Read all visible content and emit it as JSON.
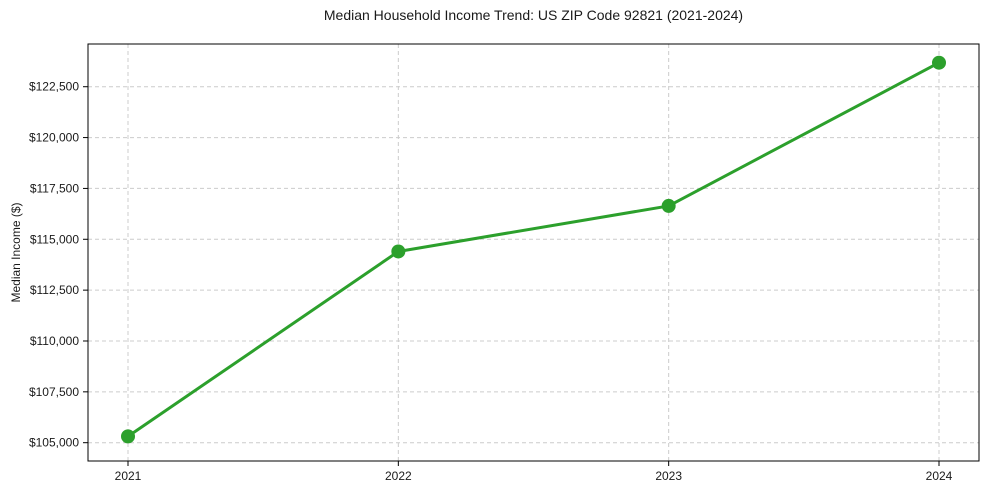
{
  "chart_data": {
    "type": "line",
    "title": "Median Household Income Trend: US ZIP Code 92821 (2021-2024)",
    "xlabel": "",
    "ylabel": "Median Income ($)",
    "categories": [
      "2021",
      "2022",
      "2023",
      "2024"
    ],
    "values": [
      105310,
      114400,
      116640,
      123680
    ],
    "ylim": [
      104100,
      124600
    ],
    "yticks": [
      105000,
      107500,
      110000,
      112500,
      115000,
      117500,
      120000,
      122500
    ],
    "ytick_labels": [
      "$105,000",
      "$107,500",
      "$110,000",
      "$112,500",
      "$115,000",
      "$117,500",
      "$120,000",
      "$122,500"
    ],
    "grid": "both, dashed",
    "legend_position": "none",
    "line_color": "#2ca02c",
    "grid_color": "#cccccc",
    "spine_color": "#000000",
    "marker": "circle"
  }
}
